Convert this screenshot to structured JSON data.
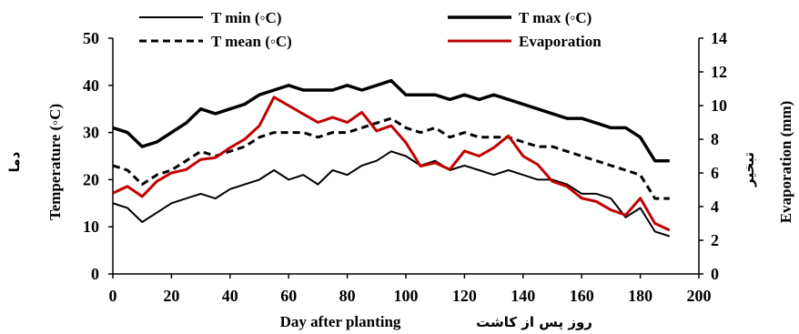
{
  "chart_data": {
    "type": "line",
    "xlabel": "Day after planting",
    "xlabel_fa": "روز پس از کاشت",
    "ylabel": "Temperature (◦C)",
    "ylabel_fa": "دما",
    "y2label": "Evaporation (mm)",
    "y2label_fa": "تبخیر",
    "xlim": [
      0,
      200
    ],
    "ylim": [
      0,
      50
    ],
    "y2lim": [
      0,
      14
    ],
    "xticks": [
      "0",
      "20",
      "40",
      "60",
      "80",
      "100",
      "120",
      "140",
      "160",
      "180",
      "200"
    ],
    "yticks": [
      "0",
      "10",
      "20",
      "30",
      "40",
      "50"
    ],
    "y2ticks": [
      "0",
      "2",
      "4",
      "6",
      "8",
      "10",
      "12",
      "14"
    ],
    "legend_placement": "top",
    "x": [
      0,
      5,
      10,
      15,
      20,
      25,
      30,
      35,
      40,
      45,
      50,
      55,
      60,
      65,
      70,
      75,
      80,
      85,
      90,
      95,
      100,
      105,
      110,
      115,
      120,
      125,
      130,
      135,
      140,
      145,
      150,
      155,
      160,
      165,
      170,
      175,
      180,
      185,
      190
    ],
    "series": [
      {
        "name": "T min (◦C)",
        "axis": "left",
        "color": "#000000",
        "width": 2,
        "dash": "",
        "values": [
          15,
          14,
          11,
          13,
          15,
          16,
          17,
          16,
          18,
          19,
          20,
          22,
          20,
          21,
          19,
          22,
          21,
          23,
          24,
          26,
          25,
          23,
          24,
          22,
          23,
          22,
          21,
          22,
          21,
          20,
          20,
          19,
          17,
          17,
          16,
          12,
          14,
          9,
          8
        ]
      },
      {
        "name": "T max (◦C)",
        "axis": "left",
        "color": "#000000",
        "width": 3.5,
        "dash": "",
        "values": [
          31,
          30,
          27,
          28,
          30,
          32,
          35,
          34,
          35,
          36,
          38,
          39,
          40,
          39,
          39,
          39,
          40,
          39,
          40,
          41,
          38,
          38,
          38,
          37,
          38,
          37,
          38,
          37,
          36,
          35,
          34,
          33,
          33,
          32,
          31,
          31,
          29,
          24,
          24
        ]
      },
      {
        "name": "T mean (◦C)",
        "axis": "left",
        "color": "#000000",
        "width": 3,
        "dash": "8,5",
        "values": [
          23,
          22,
          19,
          21,
          22,
          24,
          26,
          25,
          26,
          27,
          29,
          30,
          30,
          30,
          29,
          30,
          30,
          31,
          32,
          33,
          31,
          30,
          31,
          29,
          30,
          29,
          29,
          29,
          28,
          27,
          27,
          26,
          25,
          24,
          23,
          22,
          21,
          16,
          16
        ]
      },
      {
        "name": "Evaporation",
        "axis": "right",
        "color": "#c00000",
        "width": 3,
        "dash": "",
        "values": [
          4.8,
          5.2,
          4.6,
          5.5,
          6.0,
          6.2,
          6.8,
          6.9,
          7.5,
          8.0,
          8.8,
          10.5,
          10.0,
          9.5,
          9.0,
          9.3,
          9.0,
          9.6,
          8.5,
          8.8,
          7.8,
          6.4,
          6.6,
          6.2,
          7.3,
          7.0,
          7.5,
          8.2,
          7.0,
          6.5,
          5.5,
          5.2,
          4.5,
          4.3,
          3.8,
          3.5,
          4.5,
          3.0,
          2.6
        ]
      }
    ]
  }
}
